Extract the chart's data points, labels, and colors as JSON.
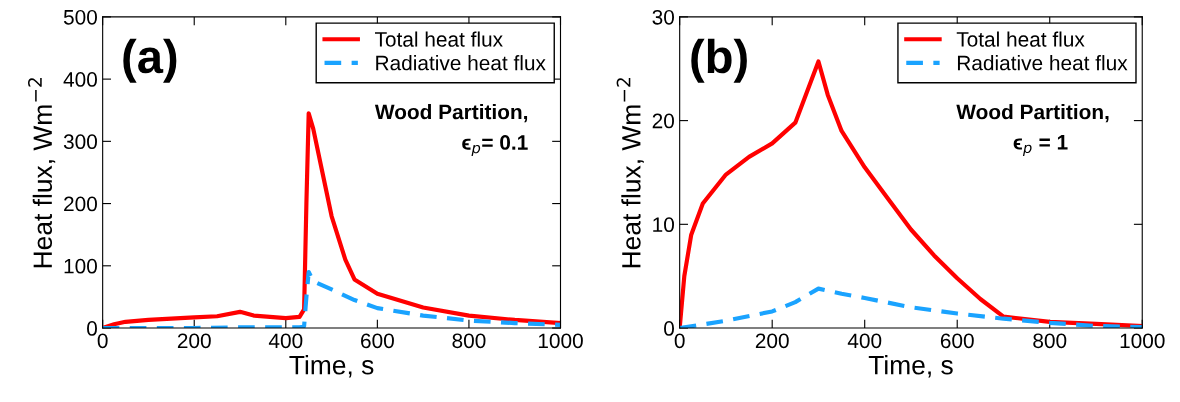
{
  "chart_data": [
    {
      "type": "line",
      "xlabel": "Time, s",
      "ylabel": "Heat flux, Wm$^{−2}$",
      "xlim": [
        0,
        1000
      ],
      "ylim": [
        0,
        500
      ],
      "xticks": [
        0,
        200,
        400,
        600,
        800,
        1000
      ],
      "yticks": [
        0,
        100,
        200,
        300,
        400,
        500
      ],
      "legend": "top right",
      "grid": false,
      "annotations": [
        "(a)",
        "Wood Partition,",
        "ϵ$_{p}$= 0.1"
      ],
      "series": [
        {
          "name": "Total heat flux",
          "color": "#ff0000",
          "line_style": "solid",
          "x": [
            0,
            25,
            50,
            100,
            200,
            250,
            300,
            330,
            400,
            430,
            440,
            445,
            450,
            460,
            480,
            500,
            530,
            550,
            600,
            700,
            800,
            900,
            1000
          ],
          "values": [
            0,
            6,
            10,
            13,
            17,
            19,
            26,
            20,
            16,
            18,
            30,
            200,
            345,
            320,
            250,
            180,
            110,
            78,
            55,
            33,
            20,
            13,
            8
          ]
        },
        {
          "name": "Radiative heat flux",
          "color": "#1aa3ff",
          "line_style": "dashed",
          "x": [
            0,
            100,
            200,
            300,
            400,
            430,
            440,
            445,
            450,
            460,
            500,
            550,
            600,
            700,
            800,
            900,
            1000
          ],
          "values": [
            0,
            0,
            0,
            1,
            1,
            1,
            3,
            50,
            90,
            75,
            62,
            45,
            32,
            20,
            12,
            8,
            5
          ]
        }
      ]
    },
    {
      "type": "line",
      "xlabel": "Time, s",
      "ylabel": "Heat flux, Wm$^{−2}$",
      "xlim": [
        0,
        1000
      ],
      "ylim": [
        0,
        30
      ],
      "xticks": [
        0,
        200,
        400,
        600,
        800,
        1000
      ],
      "yticks": [
        0,
        10,
        20,
        30
      ],
      "legend": "top right",
      "grid": false,
      "annotations": [
        "(b)",
        "Wood Partition,",
        "ϵ$_{p}$ = 1"
      ],
      "series": [
        {
          "name": "Total heat flux",
          "color": "#ff0000",
          "line_style": "solid",
          "x": [
            0,
            10,
            25,
            50,
            100,
            150,
            200,
            250,
            300,
            320,
            350,
            400,
            450,
            500,
            550,
            600,
            650,
            700,
            800,
            900,
            1000
          ],
          "values": [
            0,
            5,
            9,
            12,
            14.8,
            16.5,
            17.8,
            19.8,
            25.7,
            22.5,
            19,
            15.5,
            12.5,
            9.5,
            7,
            4.8,
            2.8,
            1.1,
            0.6,
            0.4,
            0.2
          ]
        },
        {
          "name": "Radiative heat flux",
          "color": "#1aa3ff",
          "line_style": "dashed",
          "x": [
            0,
            100,
            200,
            250,
            300,
            350,
            400,
            500,
            600,
            700,
            800,
            900,
            1000
          ],
          "values": [
            0,
            0.7,
            1.6,
            2.5,
            3.8,
            3.3,
            2.9,
            2.0,
            1.4,
            0.9,
            0.5,
            0.2,
            0.1
          ]
        }
      ]
    }
  ]
}
